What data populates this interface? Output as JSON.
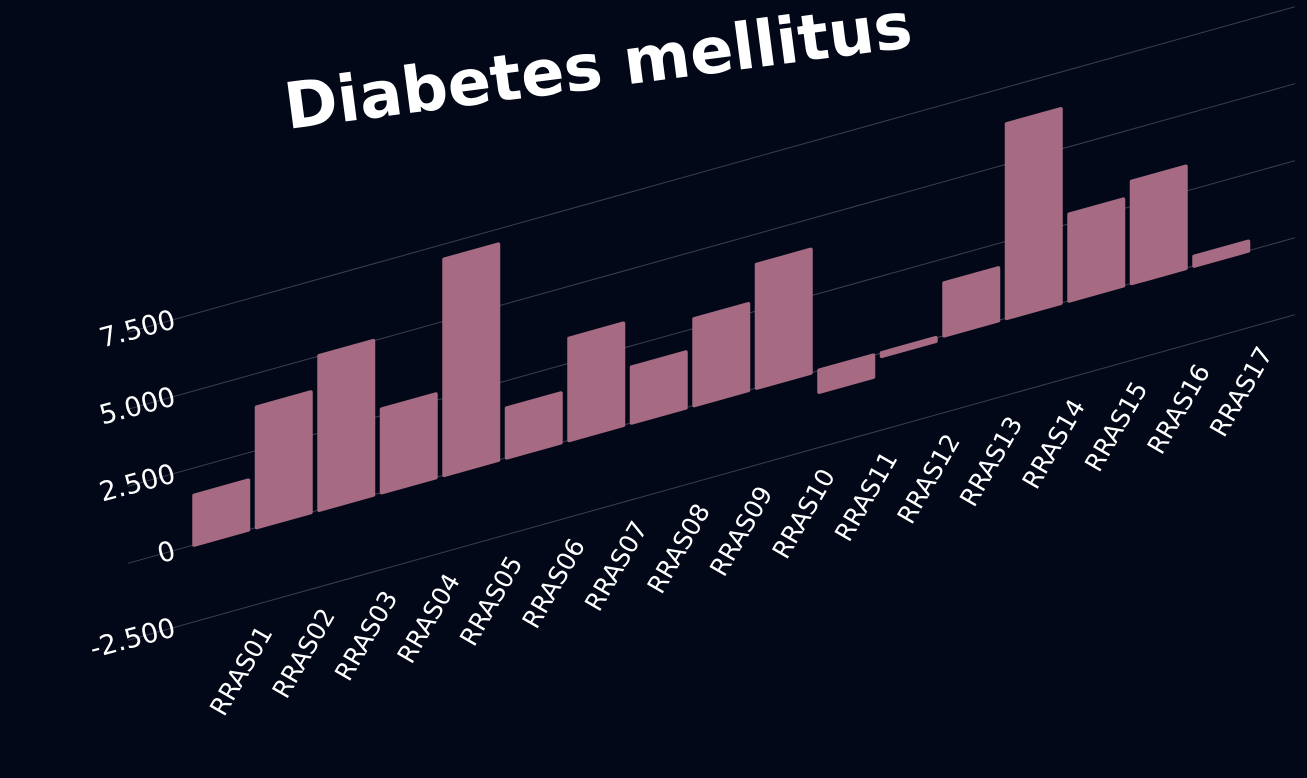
{
  "chart_data": {
    "type": "bar",
    "title": "Diabetes mellitus",
    "xlabel": "",
    "ylabel": "",
    "categories": [
      "RRAS01",
      "RRAS02",
      "RRAS03",
      "RRAS04",
      "RRAS05",
      "RRAS06",
      "RRAS07",
      "RRAS08",
      "RRAS09",
      "RRAS10",
      "RRAS11",
      "RRAS12",
      "RRAS13",
      "RRAS14",
      "RRAS15",
      "RRAS16",
      "RRAS17"
    ],
    "values": [
      1600,
      3900,
      5000,
      2700,
      7000,
      1600,
      3300,
      1800,
      2800,
      4000,
      -700,
      -100,
      1700,
      6300,
      2800,
      3300,
      300
    ],
    "ylim": [
      -2500,
      7500
    ],
    "yticks": [
      -2500,
      0,
      2500,
      5000,
      7500
    ],
    "ytick_labels": [
      "-2.500",
      "0",
      "2.500",
      "5.000",
      "7.500"
    ],
    "grid": true,
    "legend": "none",
    "bar_color": "#a66b83",
    "background": "#020817"
  }
}
